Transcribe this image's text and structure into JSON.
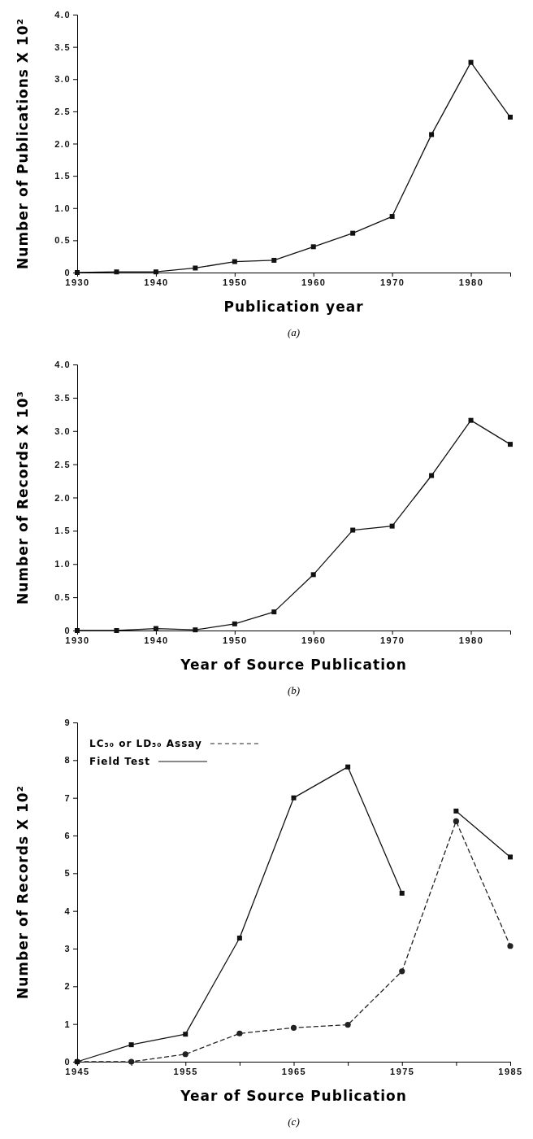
{
  "chart_data": [
    {
      "type": "line",
      "xlabel": "Publication year",
      "ylabel": "Number of Publications X 10²",
      "annotations": [
        "(a)"
      ],
      "xlim": [
        1930,
        1985
      ],
      "xticks": [
        1930,
        1940,
        1950,
        1960,
        1970,
        1980
      ],
      "ylim": [
        0,
        4
      ],
      "yticks": [
        0,
        {
          "value": 0.5,
          "label": "0.5"
        },
        {
          "value": 1,
          "label": "1.0"
        },
        {
          "value": 1.5,
          "label": "1.5"
        },
        {
          "value": 2,
          "label": "2.0"
        },
        {
          "value": 2.5,
          "label": "2.5"
        },
        {
          "value": 3,
          "label": "3.0"
        },
        {
          "value": 3.5,
          "label": "3.5"
        },
        {
          "value": 4,
          "label": "4.0"
        }
      ],
      "marker": "square",
      "x": [
        1930,
        1935,
        1940,
        1945,
        1950,
        1955,
        1960,
        1965,
        1970,
        1975,
        1980,
        1985
      ],
      "series": [
        {
          "color": "#111111",
          "values": [
            0,
            0.01,
            0.01,
            0.07,
            0.17,
            0.19,
            0.4,
            0.61,
            0.87,
            2.14,
            3.26,
            2.41
          ]
        }
      ]
    },
    {
      "type": "line",
      "xlabel": "Year of Source Publication",
      "ylabel": "Number of Records X 10³",
      "annotations": [
        "(b)"
      ],
      "xlim": [
        1930,
        1985
      ],
      "xticks": [
        1930,
        1940,
        1950,
        1960,
        1970,
        1980
      ],
      "ylim": [
        0,
        4
      ],
      "yticks": [
        0,
        {
          "value": 0.5,
          "label": "0.5"
        },
        {
          "value": 1,
          "label": "1.0"
        },
        {
          "value": 1.5,
          "label": "1.5"
        },
        {
          "value": 2,
          "label": "2.0"
        },
        {
          "value": 2.5,
          "label": "2.5"
        },
        {
          "value": 3,
          "label": "3.0"
        },
        {
          "value": 3.5,
          "label": "3.5"
        },
        {
          "value": 4,
          "label": "4.0"
        }
      ],
      "marker": "square",
      "x": [
        1930,
        1935,
        1940,
        1945,
        1950,
        1955,
        1960,
        1965,
        1970,
        1975,
        1980,
        1985
      ],
      "series": [
        {
          "color": "#111111",
          "values": [
            0,
            0,
            0.03,
            0.01,
            0.1,
            0.28,
            0.84,
            1.51,
            1.57,
            2.33,
            3.16,
            2.8
          ]
        }
      ]
    },
    {
      "type": "line",
      "xlabel": "Year of Source Publication",
      "ylabel": "Number of Records X 10²",
      "annotations": [
        "(c)"
      ],
      "xlim": [
        1945,
        1985
      ],
      "xticks": [
        1945,
        {
          "value": 1950,
          "label": null
        },
        1955,
        {
          "value": 1960,
          "label": null
        },
        1965,
        {
          "value": 1970,
          "label": null
        },
        1975,
        {
          "value": 1980,
          "label": null
        },
        1985
      ],
      "ylim": [
        0,
        9
      ],
      "yticks": [
        0,
        1,
        2,
        3,
        4,
        5,
        6,
        7,
        8,
        9
      ],
      "legend": "top left",
      "series": [
        {
          "name": "LC₅₀ or LD₅₀ Assay",
          "color": "#222222",
          "marker": "circle",
          "line_style": "dashed",
          "x": [
            1945,
            1950,
            1955,
            1960,
            1965,
            1970,
            1975,
            1980,
            1985
          ],
          "values": [
            0,
            0,
            0.2,
            0.75,
            0.9,
            0.98,
            2.4,
            6.38,
            3.07
          ]
        },
        {
          "name": "Field Test",
          "color": "#111111",
          "marker": "square",
          "line_style": "solid",
          "x": [
            1945,
            1950,
            1955,
            1960,
            1965,
            1970,
            1975,
            1977.5,
            1980,
            1985
          ],
          "values": [
            0,
            0.45,
            0.73,
            3.28,
            7.0,
            7.82,
            4.47,
            null,
            6.65,
            5.43
          ]
        }
      ]
    }
  ]
}
